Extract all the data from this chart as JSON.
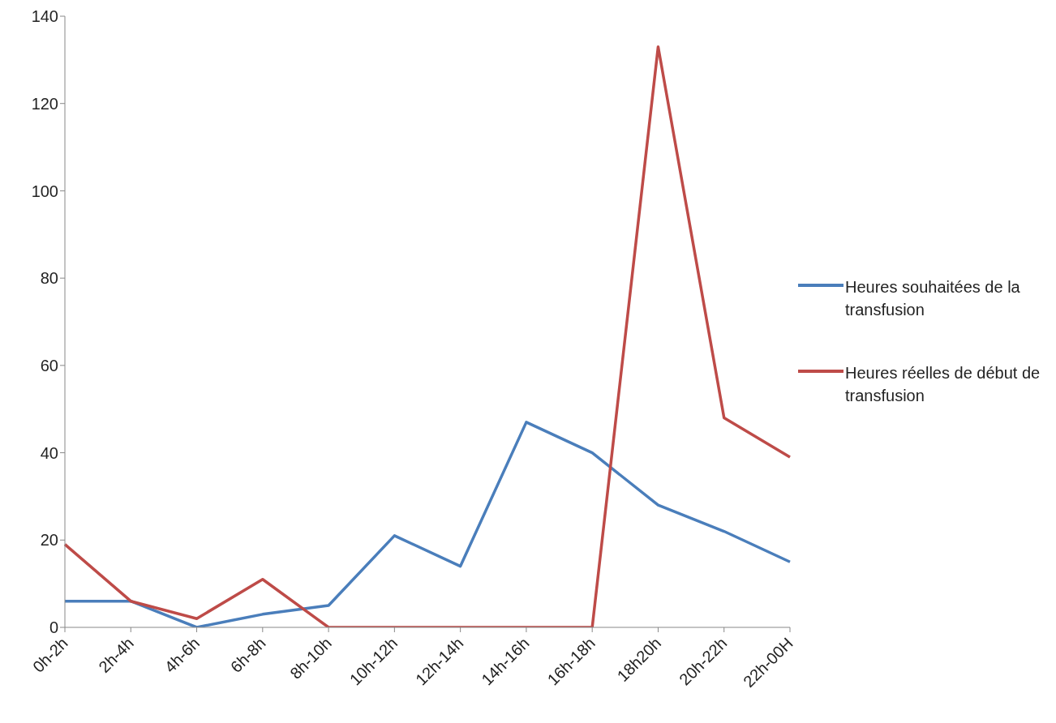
{
  "chart_data": {
    "type": "line",
    "categories": [
      "0h-2h",
      "2h-4h",
      "4h-6h",
      "6h-8h",
      "8h-10h",
      "10h-12h",
      "12h-14h",
      "14h-16h",
      "16h-18h",
      "18h20h",
      "20h-22h",
      "22h-00H"
    ],
    "series": [
      {
        "name": "Heures souhaitées de la transfusion",
        "color": "#4a7ebb",
        "values": [
          6,
          6,
          0,
          3,
          5,
          21,
          14,
          47,
          40,
          28,
          22,
          15
        ]
      },
      {
        "name": "Heures réelles de début de transfusion",
        "color": "#be4b48",
        "values": [
          19,
          6,
          2,
          11,
          0,
          0,
          0,
          0,
          0,
          133,
          48,
          39
        ]
      }
    ],
    "ylim": [
      0,
      140
    ],
    "yticks": [
      0,
      20,
      40,
      60,
      80,
      100,
      120,
      140
    ],
    "grid": false,
    "legend": "right",
    "marker": "none",
    "line_style": "solid"
  }
}
